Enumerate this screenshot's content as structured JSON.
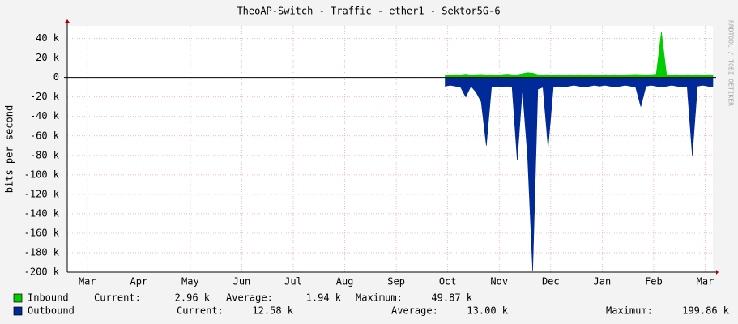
{
  "chart_data": {
    "type": "area",
    "title": "TheoAP-Switch - Traffic - ether1 - Sektor5G-6",
    "y_label": "bits per second",
    "side_note": "RRDTOOL / TOBI OETIKER",
    "x": [
      6.95,
      7.05,
      7.15,
      7.25,
      7.35,
      7.45,
      7.55,
      7.65,
      7.75,
      7.85,
      7.95,
      8.05,
      8.15,
      8.25,
      8.35,
      8.45,
      8.55,
      8.65,
      8.75,
      8.85,
      8.95,
      9.05,
      9.15,
      9.25,
      9.35,
      9.45,
      9.55,
      9.65,
      9.75,
      9.85,
      9.95,
      10.05,
      10.15,
      10.25,
      10.35,
      10.45,
      10.55,
      10.65,
      10.75,
      10.85,
      10.95,
      11.05,
      11.15,
      11.25,
      11.35,
      11.45,
      11.55,
      11.65,
      11.75,
      11.85,
      11.95,
      12.05,
      12.15
    ],
    "xlim": [
      -0.39,
      12.15
    ],
    "xticks": [
      {
        "value": 0,
        "label": "Mar"
      },
      {
        "value": 1,
        "label": "Apr"
      },
      {
        "value": 2,
        "label": "May"
      },
      {
        "value": 3,
        "label": "Jun"
      },
      {
        "value": 4,
        "label": "Jul"
      },
      {
        "value": 5,
        "label": "Aug"
      },
      {
        "value": 6,
        "label": "Sep"
      },
      {
        "value": 7,
        "label": "Oct"
      },
      {
        "value": 8,
        "label": "Nov"
      },
      {
        "value": 9,
        "label": "Dec"
      },
      {
        "value": 10,
        "label": "Jan"
      },
      {
        "value": 11,
        "label": "Feb"
      },
      {
        "value": 12,
        "label": "Mar"
      }
    ],
    "ylim": [
      -200000,
      53000
    ],
    "yticks": [
      {
        "value": 40000,
        "label": "40 k"
      },
      {
        "value": 20000,
        "label": "20 k"
      },
      0,
      {
        "value": -20000,
        "label": "-20 k"
      },
      {
        "value": -40000,
        "label": "-40 k"
      },
      {
        "value": -60000,
        "label": "-60 k"
      },
      {
        "value": -80000,
        "label": "-80 k"
      },
      {
        "value": -100000,
        "label": "-100 k"
      },
      {
        "value": -120000,
        "label": "-120 k"
      },
      {
        "value": -140000,
        "label": "-140 k"
      },
      {
        "value": -160000,
        "label": "-160 k"
      },
      {
        "value": -180000,
        "label": "-180 k"
      },
      {
        "value": -200000,
        "label": "-200 k"
      }
    ],
    "grid": true,
    "series": [
      {
        "name": "Inbound",
        "color": "#00cc00",
        "values": [
          3000,
          2500,
          3000,
          2800,
          3500,
          2600,
          3000,
          3200,
          2800,
          3000,
          2500,
          3000,
          3500,
          3000,
          2800,
          4000,
          5000,
          4500,
          3000,
          2800,
          3000,
          2600,
          3000,
          2500,
          3000,
          2800,
          3000,
          2600,
          3000,
          2800,
          2500,
          3000,
          2700,
          3000,
          2500,
          2800,
          3000,
          3200,
          3000,
          2800,
          3000,
          3500,
          47000,
          3000,
          2800,
          3000,
          2500,
          3000,
          2800,
          3000,
          2600,
          3000,
          2800
        ],
        "stats": [
          {
            "label": "Current:",
            "value": "2.96 k"
          },
          {
            "label": "Average:",
            "value": "1.94 k"
          },
          {
            "label": "Maximum:",
            "value": "49.87 k"
          }
        ]
      },
      {
        "name": "Outbound",
        "color": "#002a97",
        "values": [
          -9000,
          -8000,
          -9000,
          -10000,
          -20000,
          -9000,
          -15000,
          -25000,
          -70000,
          -10000,
          -9000,
          -10000,
          -9000,
          -10000,
          -85000,
          -12000,
          -80000,
          -199000,
          -12000,
          -10000,
          -72000,
          -10000,
          -9000,
          -10000,
          -9000,
          -8000,
          -9000,
          -10000,
          -9000,
          -8000,
          -9000,
          -8000,
          -9000,
          -10000,
          -9000,
          -8000,
          -9000,
          -10000,
          -30000,
          -9000,
          -8000,
          -9000,
          -10000,
          -9000,
          -8000,
          -9000,
          -10000,
          -9000,
          -80000,
          -9000,
          -8000,
          -9000,
          -10000
        ],
        "stats": [
          {
            "label": "Current:",
            "value": "12.58 k"
          },
          {
            "label": "Average:",
            "value": "13.00 k"
          },
          {
            "label": "Maximum:",
            "value": "199.86 k"
          }
        ]
      }
    ]
  }
}
